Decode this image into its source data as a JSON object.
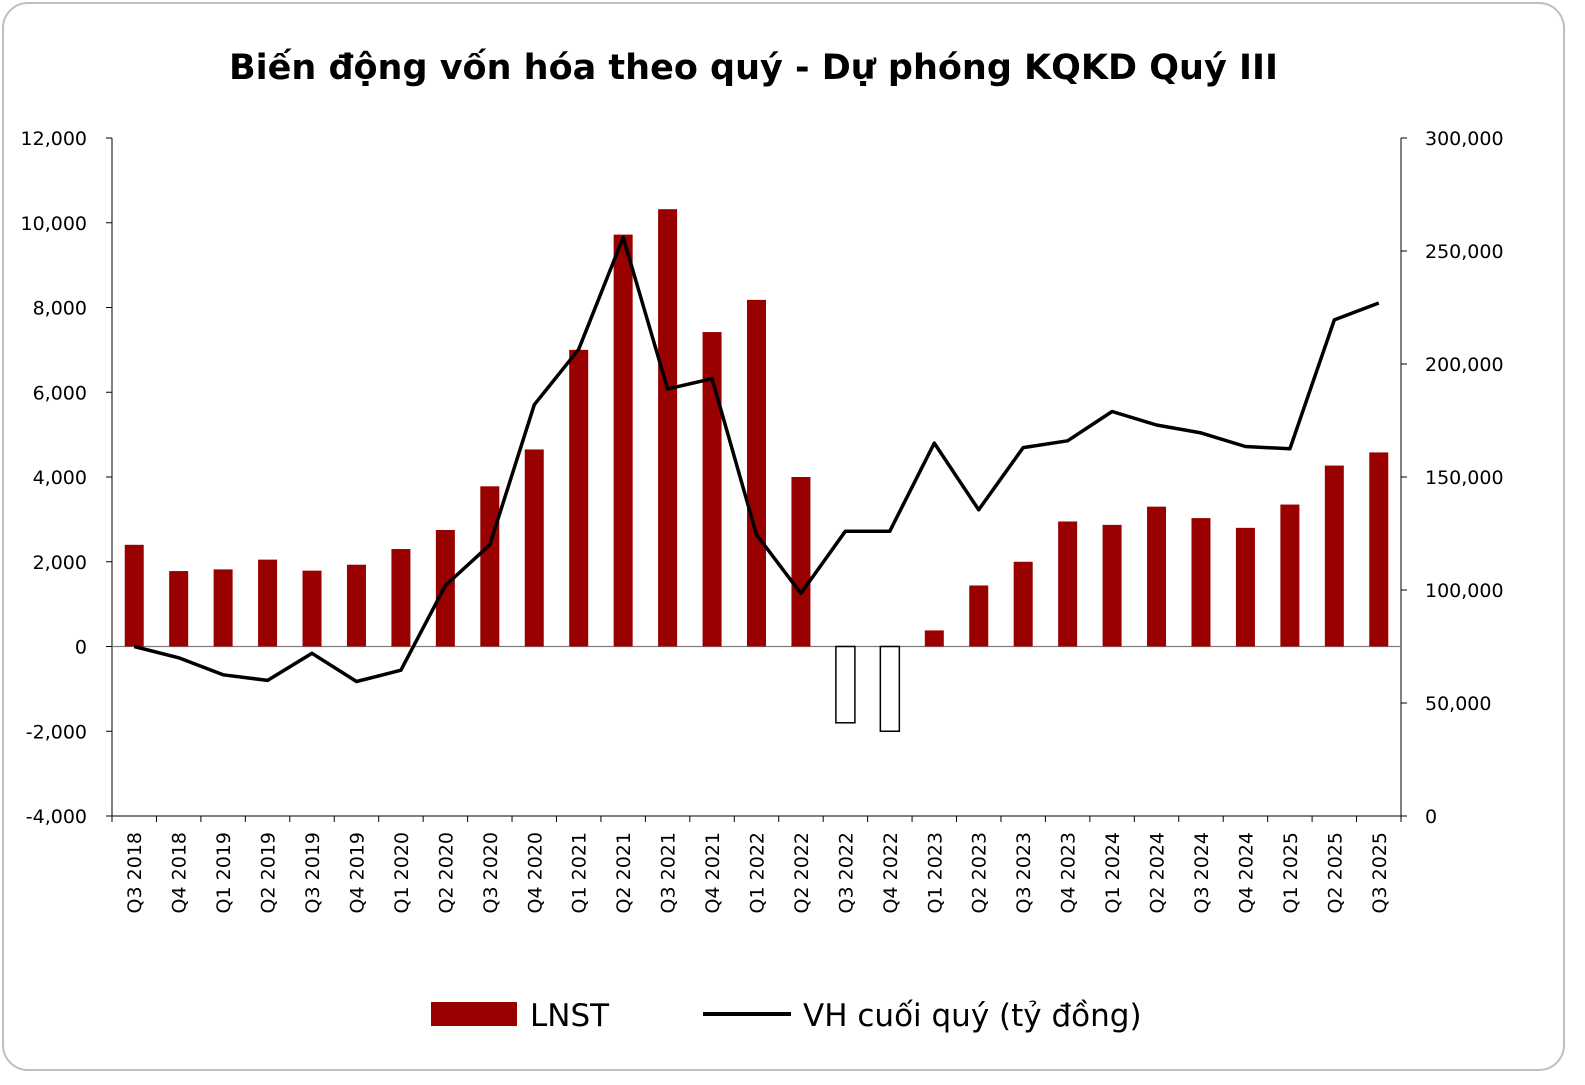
{
  "chart_data": {
    "type": "bar+line",
    "title": "Biến động vốn hóa theo quý - Dự phóng KQKD Quý III",
    "categories": [
      "Q3 2018",
      "Q4 2018",
      "Q1 2019",
      "Q2 2019",
      "Q3 2019",
      "Q4 2019",
      "Q1 2020",
      "Q2 2020",
      "Q3 2020",
      "Q4 2020",
      "Q1 2021",
      "Q2 2021",
      "Q3 2021",
      "Q4 2021",
      "Q1 2022",
      "Q2 2022",
      "Q3 2022",
      "Q4 2022",
      "Q1 2023",
      "Q2 2023",
      "Q3 2023",
      "Q4 2023",
      "Q1 2024",
      "Q2 2024",
      "Q3 2024",
      "Q4 2024",
      "Q1 2025",
      "Q2 2025",
      "Q3 2025"
    ],
    "series": [
      {
        "name": "LNST",
        "type": "bar",
        "axis": "left",
        "color": "#990000",
        "values": [
          2400,
          1780,
          1820,
          2050,
          1790,
          1930,
          2300,
          2750,
          3780,
          4650,
          7000,
          9720,
          10320,
          7420,
          8180,
          4000,
          -1800,
          -2000,
          380,
          1440,
          2000,
          2950,
          2870,
          3300,
          3030,
          2800,
          3350,
          4270,
          4580
        ]
      },
      {
        "name": "VH cuối quý (tỷ đồng)",
        "type": "line",
        "axis": "right",
        "color": "#000000",
        "values": [
          75000,
          70000,
          62500,
          60000,
          72000,
          59500,
          64500,
          102000,
          120000,
          182000,
          206500,
          256000,
          189000,
          193500,
          124500,
          98500,
          126000,
          126000,
          165000,
          135500,
          163000,
          166000,
          179000,
          173000,
          169500,
          163500,
          162500,
          219500,
          227000
        ]
      }
    ],
    "y_left": {
      "min": -4000,
      "max": 12000,
      "ticks": [
        "-4,000",
        "-2,000",
        "0",
        "2,000",
        "4,000",
        "6,000",
        "8,000",
        "10,000",
        "12,000"
      ]
    },
    "y_right": {
      "min": 0,
      "max": 300000,
      "ticks": [
        "0",
        "50,000",
        "100,000",
        "150,000",
        "200,000",
        "250,000",
        "300,000"
      ]
    },
    "legend": {
      "position": "bottom"
    },
    "negative_bar_style": "outline"
  }
}
